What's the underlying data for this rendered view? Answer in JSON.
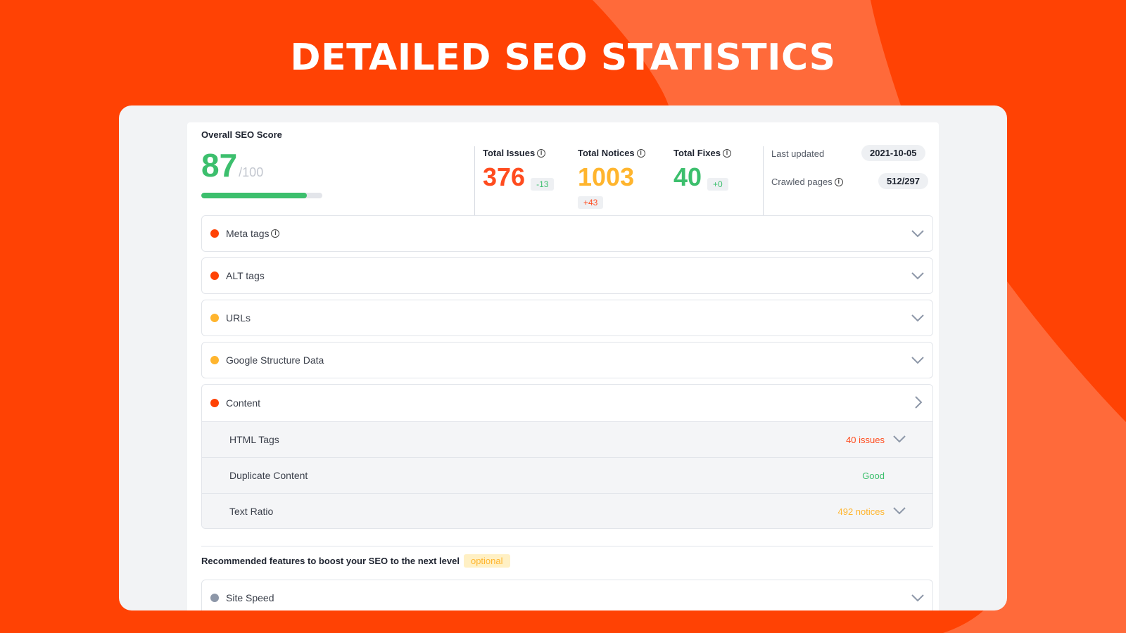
{
  "hero": {
    "title": "DETAILED SEO STATISTICS"
  },
  "colors": {
    "brand": "#ff4204",
    "green": "#3cbf6d",
    "red": "#ff4c1f",
    "yellow": "#ffb52e",
    "gray_dot": "#8d97a8"
  },
  "score": {
    "title": "Overall SEO Score",
    "value": "87",
    "max": "/100",
    "progress": 0.87
  },
  "stats": {
    "issues": {
      "label": "Total Issues",
      "value": "376",
      "delta": "-13"
    },
    "notices": {
      "label": "Total Notices",
      "value": "1003",
      "delta": "+43"
    },
    "fixes": {
      "label": "Total Fixes",
      "value": "40",
      "delta": "+0"
    }
  },
  "meta": {
    "last_updated_label": "Last updated",
    "last_updated_value": "2021-10-05",
    "crawled_label": "Crawled pages",
    "crawled_value": "512/297"
  },
  "categories": [
    {
      "label": "Meta tags",
      "status": "red",
      "has_info": true
    },
    {
      "label": "ALT tags",
      "status": "red"
    },
    {
      "label": "URLs",
      "status": "yellow"
    },
    {
      "label": "Google Structure Data",
      "status": "yellow"
    }
  ],
  "content": {
    "label": "Content",
    "status": "red",
    "items": [
      {
        "label": "HTML Tags",
        "status_text": "40 issues",
        "status_color": "red"
      },
      {
        "label": "Duplicate Content",
        "status_text": "Good",
        "status_color": "green"
      },
      {
        "label": "Text Ratio",
        "status_text": "492 notices",
        "status_color": "yellow"
      }
    ]
  },
  "recommended": {
    "text": "Recommended features to boost your SEO to the next level",
    "badge": "optional"
  },
  "optional_items": [
    {
      "label": "Site Speed",
      "status": "gray"
    }
  ],
  "icons": {
    "expand": "chevron-down-icon",
    "open": "chevron-right-icon",
    "info": "info-icon"
  }
}
